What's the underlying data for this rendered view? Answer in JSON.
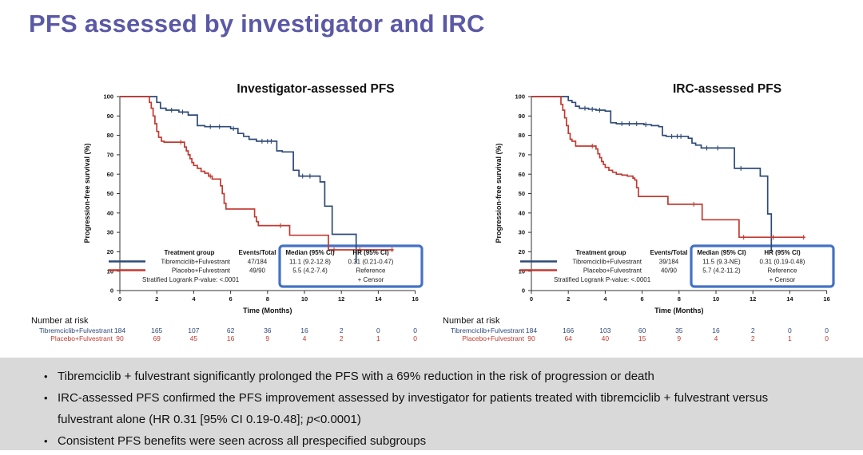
{
  "slide_title": "PFS assessed by investigator and IRC",
  "theme": {
    "title_color": "#5b59a6",
    "navy": "#2e4a78",
    "red": "#c13a31",
    "legend_box": "#4472c4",
    "panel_bg": "#d9d9d9"
  },
  "chart_data": [
    {
      "type": "line",
      "subtype": "kaplan-meier",
      "title": "Investigator-assessed PFS",
      "xlabel": "Time (Months)",
      "ylabel": "Progression-free survival (%)",
      "xlim": [
        0,
        16
      ],
      "ylim": [
        0,
        100
      ],
      "xticks": [
        0,
        2,
        4,
        6,
        8,
        10,
        12,
        14,
        16
      ],
      "yticks": [
        0,
        10,
        20,
        30,
        40,
        50,
        60,
        70,
        80,
        90,
        100
      ],
      "legend_headers": [
        "Treatment group",
        "Events/Total",
        "Median (95% CI)",
        "HR (95% CI)"
      ],
      "stratified_label": "Stratified Logrank P-value: <.0001",
      "censor_label": "+  Censor",
      "series": [
        {
          "name": "Tibremciclib+Fulvestrant",
          "color": "#2e4a78",
          "events_total": "47/184",
          "median_ci": "11.1 (9.2-12.8)",
          "hr_ci": "0.31 (0.21-0.47)",
          "points": [
            [
              0,
              100
            ],
            [
              2.0,
              97
            ],
            [
              2.2,
              94
            ],
            [
              2.5,
              93
            ],
            [
              3.2,
              92
            ],
            [
              3.7,
              90.5
            ],
            [
              4.2,
              85
            ],
            [
              4.6,
              84.5
            ],
            [
              6.0,
              83.5
            ],
            [
              6.4,
              81
            ],
            [
              6.7,
              79.5
            ],
            [
              7.0,
              78
            ],
            [
              7.4,
              77
            ],
            [
              8.5,
              72
            ],
            [
              8.8,
              71.5
            ],
            [
              9.4,
              62
            ],
            [
              9.7,
              59
            ],
            [
              10.85,
              56
            ],
            [
              11.1,
              43.5
            ],
            [
              11.5,
              29
            ],
            [
              12.8,
              14
            ]
          ],
          "end": 12.8,
          "censors": [
            [
              2.8,
              93
            ],
            [
              3.4,
              92
            ],
            [
              4.9,
              84.5
            ],
            [
              5.4,
              84.5
            ],
            [
              6.15,
              83.5
            ],
            [
              7.7,
              77
            ],
            [
              8.0,
              77
            ],
            [
              8.2,
              77
            ],
            [
              9.9,
              59
            ],
            [
              10.3,
              59
            ]
          ]
        },
        {
          "name": "Placebo+Fulvestrant",
          "color": "#c13a31",
          "events_total": "49/90",
          "median_ci": "5.5 (4.2-7.4)",
          "hr_ci": "Reference",
          "points": [
            [
              0,
              100
            ],
            [
              1.6,
              97
            ],
            [
              1.7,
              94
            ],
            [
              1.8,
              90
            ],
            [
              1.9,
              86
            ],
            [
              2.0,
              82
            ],
            [
              2.1,
              79
            ],
            [
              2.25,
              77
            ],
            [
              2.4,
              76.5
            ],
            [
              3.5,
              74
            ],
            [
              3.6,
              72
            ],
            [
              3.7,
              70
            ],
            [
              3.8,
              68
            ],
            [
              3.9,
              66
            ],
            [
              4.0,
              64.5
            ],
            [
              4.2,
              63
            ],
            [
              4.4,
              61.5
            ],
            [
              4.6,
              60.5
            ],
            [
              4.8,
              59
            ],
            [
              5.0,
              57.5
            ],
            [
              5.45,
              54
            ],
            [
              5.55,
              50
            ],
            [
              5.65,
              45
            ],
            [
              5.75,
              42
            ],
            [
              7.3,
              38
            ],
            [
              7.4,
              35.5
            ],
            [
              7.5,
              33.5
            ],
            [
              9.2,
              28.5
            ],
            [
              11.3,
              21
            ]
          ],
          "end": 14.8,
          "censors": [
            [
              3.3,
              76.5
            ],
            [
              4.9,
              59
            ],
            [
              8.7,
              33.5
            ],
            [
              11.6,
              21
            ],
            [
              13.0,
              21
            ],
            [
              14.75,
              21
            ]
          ]
        }
      ],
      "number_at_risk": {
        "header": "Number at risk",
        "rows": [
          {
            "label": "Tibremciclib+Fulvestrant",
            "values": [
              184,
              165,
              107,
              62,
              36,
              16,
              2,
              0,
              0
            ]
          },
          {
            "label": "Placebo+Fulvestrant",
            "values": [
              90,
              69,
              45,
              16,
              9,
              4,
              2,
              1,
              0
            ]
          }
        ]
      }
    },
    {
      "type": "line",
      "subtype": "kaplan-meier",
      "title": "IRC-assessed PFS",
      "xlabel": "Time (Months)",
      "ylabel": "Progression-free survival (%)",
      "xlim": [
        0,
        16
      ],
      "ylim": [
        0,
        100
      ],
      "xticks": [
        0,
        2,
        4,
        6,
        8,
        10,
        12,
        14,
        16
      ],
      "yticks": [
        0,
        10,
        20,
        30,
        40,
        50,
        60,
        70,
        80,
        90,
        100
      ],
      "legend_headers": [
        "Treatment group",
        "Events/Total",
        "Median (95% CI)",
        "HR (95% CI)"
      ],
      "stratified_label": "Stratified Logrank P-value: <.0001",
      "censor_label": "+  Censor",
      "series": [
        {
          "name": "Tibremciclib+Fulvestrant",
          "color": "#2e4a78",
          "events_total": "39/184",
          "median_ci": "11.5 (9.3-NE)",
          "hr_ci": "0.31 (0.19-0.48)",
          "points": [
            [
              0,
              100
            ],
            [
              2.0,
              98
            ],
            [
              2.2,
              97
            ],
            [
              2.4,
              95
            ],
            [
              2.6,
              94
            ],
            [
              3.1,
              93.5
            ],
            [
              3.5,
              93
            ],
            [
              4.0,
              92.5
            ],
            [
              4.3,
              86.5
            ],
            [
              4.6,
              86
            ],
            [
              6.1,
              85.5
            ],
            [
              6.5,
              85
            ],
            [
              6.9,
              84.5
            ],
            [
              7.1,
              80
            ],
            [
              7.3,
              79.5
            ],
            [
              8.5,
              78.5
            ],
            [
              8.7,
              76
            ],
            [
              8.9,
              75
            ],
            [
              9.2,
              73.5
            ],
            [
              11.0,
              63
            ],
            [
              12.4,
              59
            ],
            [
              12.8,
              39.5
            ],
            [
              13.0,
              20
            ]
          ],
          "end": 13.0,
          "censors": [
            [
              2.9,
              94
            ],
            [
              3.3,
              93.5
            ],
            [
              3.7,
              93
            ],
            [
              4.9,
              86
            ],
            [
              5.3,
              86
            ],
            [
              5.7,
              86
            ],
            [
              6.2,
              85.5
            ],
            [
              7.6,
              79.5
            ],
            [
              7.9,
              79.5
            ],
            [
              8.1,
              79.5
            ],
            [
              9.5,
              73.5
            ],
            [
              10.1,
              73.5
            ],
            [
              11.35,
              63
            ]
          ]
        },
        {
          "name": "Placebo+Fulvestrant",
          "color": "#c13a31",
          "events_total": "40/90",
          "median_ci": "5.7 (4.2-11.2)",
          "hr_ci": "Reference",
          "points": [
            [
              0,
              100
            ],
            [
              1.6,
              96
            ],
            [
              1.7,
              93
            ],
            [
              1.8,
              89
            ],
            [
              1.9,
              85
            ],
            [
              2.0,
              81
            ],
            [
              2.1,
              78
            ],
            [
              2.2,
              77
            ],
            [
              2.4,
              74.5
            ],
            [
              3.5,
              73
            ],
            [
              3.6,
              70.5
            ],
            [
              3.7,
              68.5
            ],
            [
              3.8,
              66.5
            ],
            [
              3.9,
              65
            ],
            [
              4.0,
              63.5
            ],
            [
              4.2,
              62
            ],
            [
              4.4,
              61
            ],
            [
              4.6,
              60
            ],
            [
              4.9,
              59.5
            ],
            [
              5.2,
              59
            ],
            [
              5.5,
              58
            ],
            [
              5.6,
              57
            ],
            [
              5.7,
              53
            ],
            [
              5.8,
              48.5
            ],
            [
              7.4,
              44.5
            ],
            [
              9.25,
              36.5
            ],
            [
              11.25,
              27.5
            ]
          ],
          "end": 14.8,
          "censors": [
            [
              3.3,
              74.5
            ],
            [
              8.8,
              44.5
            ],
            [
              11.5,
              27.5
            ],
            [
              13.1,
              27.5
            ],
            [
              14.75,
              27.5
            ]
          ]
        }
      ],
      "number_at_risk": {
        "header": "Number at risk",
        "rows": [
          {
            "label": "Tibremciclib+Fulvestrant",
            "values": [
              184,
              166,
              103,
              60,
              35,
              16,
              2,
              0,
              0
            ]
          },
          {
            "label": "Placebo+Fulvestrant",
            "values": [
              90,
              64,
              40,
              15,
              9,
              4,
              2,
              1,
              0
            ]
          }
        ]
      }
    }
  ],
  "bullets": {
    "marker": "•",
    "items": [
      {
        "line1": "Tibremciclib + fulvestrant significantly prolonged the PFS with a 69% reduction in the risk of progression or death"
      },
      {
        "line1": "IRC-assessed PFS confirmed the PFS improvement assessed by investigator for patients treated with tibremciclib + fulvestrant versus",
        "line2_prefix": "fulvestrant alone (HR 0.31 [95% CI 0.19-0.48]; ",
        "line2_italic": "p",
        "line2_suffix": "<0.0001)"
      },
      {
        "line1": "Consistent PFS benefits were seen across all prespecified subgroups"
      }
    ]
  }
}
